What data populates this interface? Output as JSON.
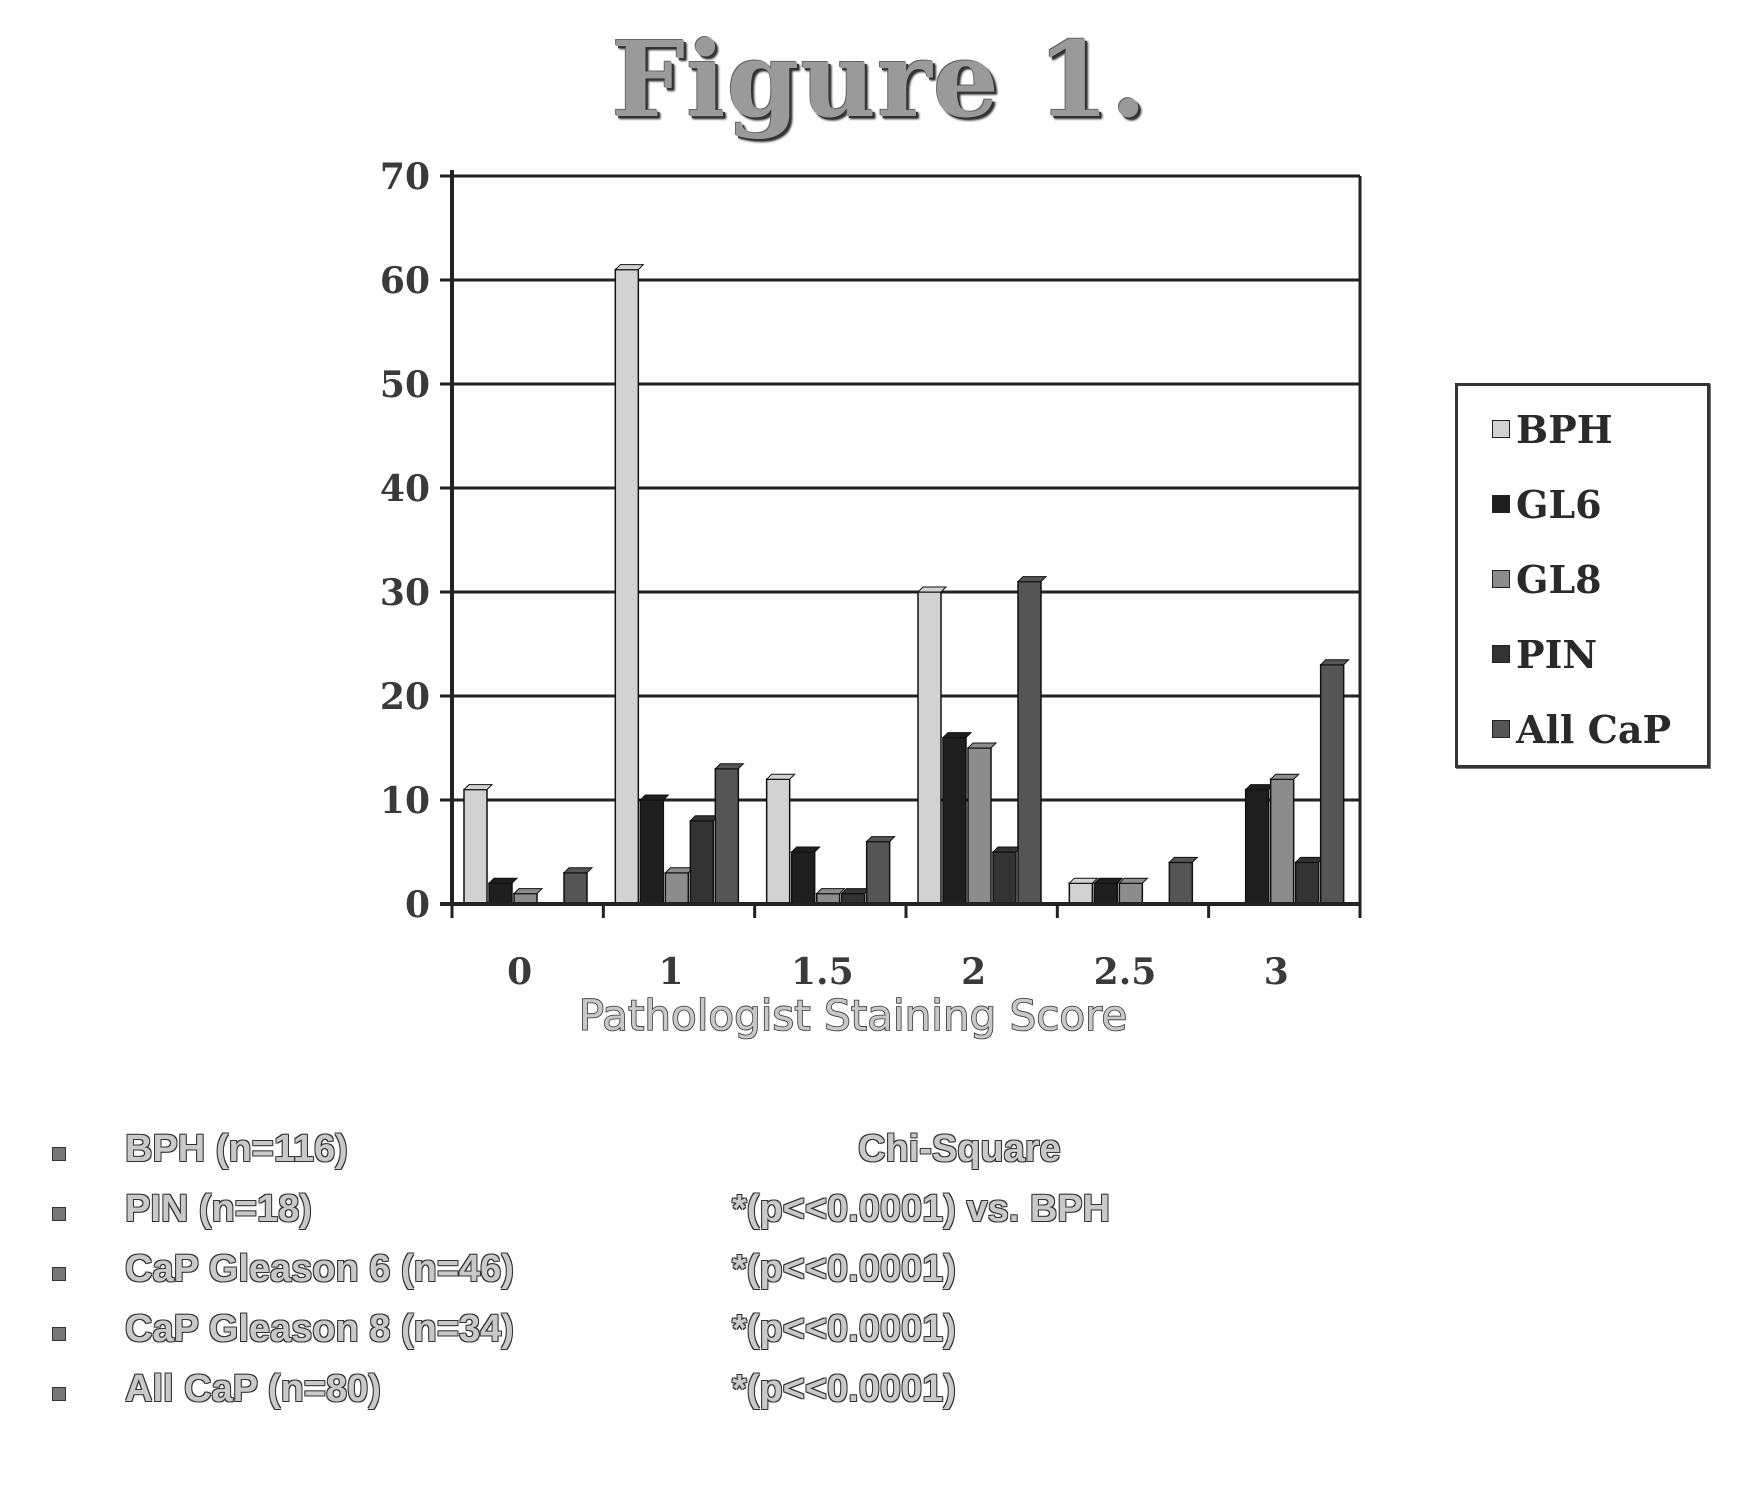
{
  "figure_title": "Figure 1.",
  "chart_data": {
    "type": "bar",
    "title": "",
    "xlabel": "Pathologist Staining Score",
    "ylabel": "",
    "ylim": [
      0,
      70
    ],
    "yticks": [
      "0",
      "10",
      "20",
      "30",
      "40",
      "50",
      "60",
      "70"
    ],
    "categories": [
      "0",
      "1",
      "1.5",
      "2",
      "2.5",
      "3"
    ],
    "grid": true,
    "legend_position": "right",
    "series": [
      {
        "name": "BPH",
        "color": "#d2d2d2",
        "values": [
          11,
          61,
          12,
          30,
          2,
          0
        ]
      },
      {
        "name": "GL6",
        "color": "#1e1e1e",
        "values": [
          2,
          10,
          5,
          16,
          2,
          11
        ]
      },
      {
        "name": "GL8",
        "color": "#8c8c8c",
        "values": [
          1,
          3,
          1,
          15,
          2,
          12
        ]
      },
      {
        "name": "PIN",
        "color": "#333333",
        "values": [
          0,
          8,
          1,
          5,
          0,
          4
        ]
      },
      {
        "name": "All CaP",
        "color": "#555555",
        "values": [
          3,
          13,
          6,
          31,
          4,
          23
        ]
      }
    ]
  },
  "legend": [
    {
      "label": "BPH",
      "color": "#d2d2d2"
    },
    {
      "label": "GL6",
      "color": "#1e1e1e"
    },
    {
      "label": "GL8",
      "color": "#8c8c8c"
    },
    {
      "label": "PIN",
      "color": "#333333"
    },
    {
      "label": "All CaP",
      "color": "#555555"
    }
  ],
  "notes": {
    "groups": [
      "BPH (n=116)",
      "PIN (n=18)",
      "CaP Gleason 6 (n=46)",
      "CaP Gleason 8 (n=34)",
      "All CaP (n=80)"
    ],
    "stats_header": "Chi-Square",
    "stats": [
      "*(p<<0.0001) vs. BPH",
      "*(p<<0.0001)",
      "*(p<<0.0001)",
      "*(p<<0.0001)"
    ]
  }
}
